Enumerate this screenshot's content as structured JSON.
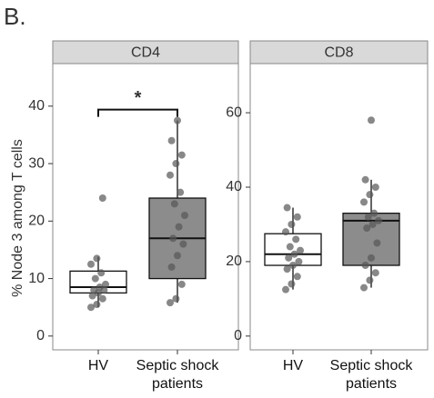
{
  "heading": "B.",
  "y_label": "% Node 3 among T cells",
  "chart_data": [
    {
      "type": "box",
      "title": "CD4",
      "categories": [
        "HV",
        "Septic shock patients"
      ],
      "boxes": [
        {
          "min": 5,
          "q1": 7.5,
          "median": 8.5,
          "q3": 11.3,
          "max": 13.8,
          "color": "#ffffff",
          "points": [
            5,
            5.5,
            6.5,
            7,
            7.5,
            8,
            8,
            8.5,
            9,
            10,
            11,
            12.5,
            13.5,
            24
          ]
        },
        {
          "min": 5.8,
          "q1": 10,
          "median": 17,
          "q3": 24,
          "max": 37.5,
          "color": "#8c8c8c",
          "points": [
            5.8,
            6.5,
            9,
            12,
            14,
            16,
            17,
            19,
            21,
            23,
            25,
            28,
            30,
            31.5,
            34,
            37.5
          ]
        }
      ],
      "ylim": [
        -2.4,
        47.4
      ],
      "yticks": [
        0,
        10,
        20,
        30,
        40
      ],
      "annotation": "*"
    },
    {
      "type": "box",
      "title": "CD8",
      "categories": [
        "HV",
        "Septic shock patients"
      ],
      "boxes": [
        {
          "min": 12.5,
          "q1": 19,
          "median": 22,
          "q3": 27.5,
          "max": 34.5,
          "color": "#ffffff",
          "points": [
            12.5,
            14,
            16,
            18,
            19,
            20,
            21,
            22,
            23,
            24,
            26,
            28,
            30,
            32,
            34.5
          ]
        },
        {
          "min": 13,
          "q1": 19,
          "median": 31,
          "q3": 33,
          "max": 42,
          "color": "#8c8c8c",
          "points": [
            13,
            15,
            17,
            19,
            21,
            25,
            29,
            30,
            31,
            32,
            33,
            36,
            38,
            40,
            42,
            58
          ]
        }
      ],
      "ylim": [
        -3.7,
        73.2
      ],
      "yticks": [
        0,
        20,
        40,
        60
      ]
    }
  ]
}
